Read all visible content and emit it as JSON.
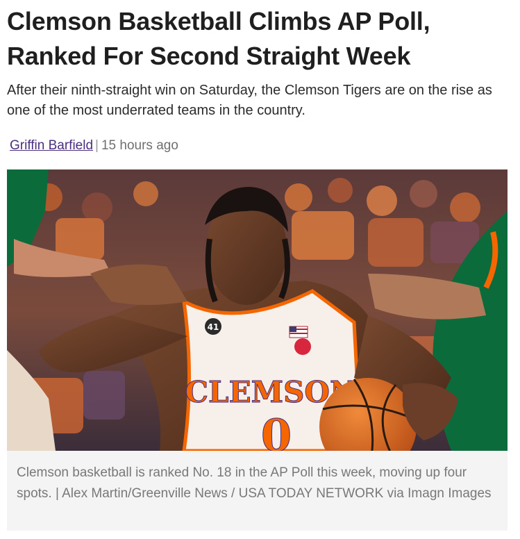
{
  "article": {
    "headline": "Clemson Basketball Climbs AP Poll, Ranked For Second Straight Week",
    "subheadline": "After their ninth-straight win on Saturday, the Clemson Tigers are on the rise as one of the most underrated teams in the country.",
    "author": "Griffin Barfield",
    "separator": "|",
    "timestamp": "15 hours ago"
  },
  "photo": {
    "jersey_team": "CLEMSON",
    "jersey_number": "0",
    "patch_number": "41",
    "caption": "Clemson basketball is ranked No. 18 in the AP Poll this week, moving up four spots. | Alex Martin/Greenville News / USA TODAY NETWORK via Imagn Images"
  },
  "colors": {
    "author_link": "#4b2e7f",
    "clemson_orange": "#f56600",
    "miami_green": "#0b6b3a",
    "caption_bg": "#f4f4f4"
  }
}
